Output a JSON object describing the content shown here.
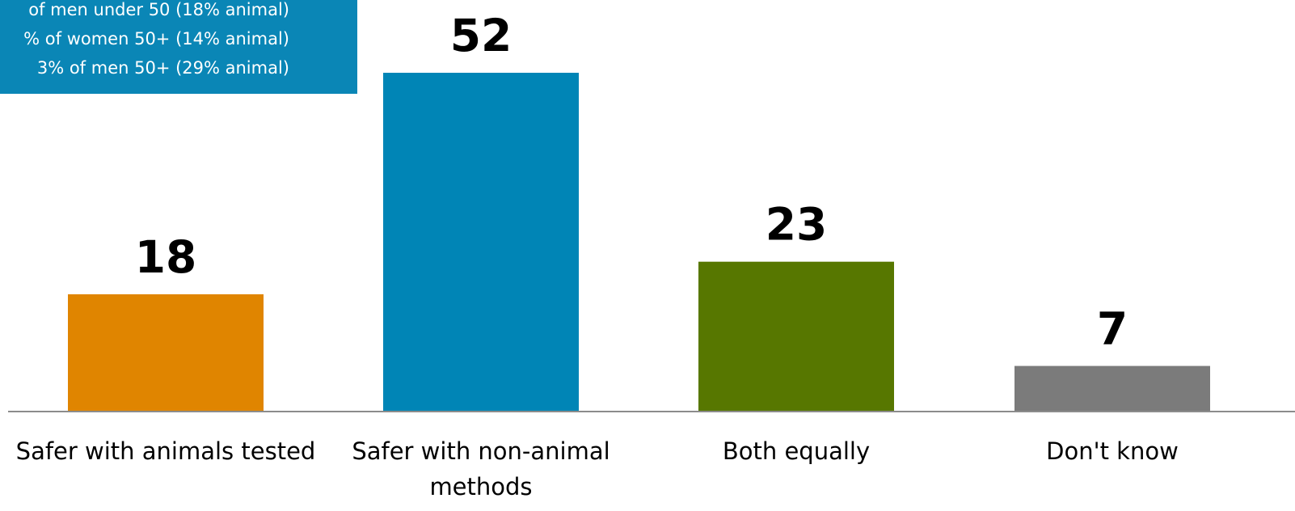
{
  "note": {
    "lines": [
      "of men under 50 (18% animal)",
      "% of women 50+ (14% animal)",
      "3% of men 50+ (29% animal)"
    ],
    "background": "#0a86b6",
    "text_color": "#ffffff"
  },
  "chart_data": {
    "type": "bar",
    "categories": [
      [
        "Safer with animals tested"
      ],
      [
        "Safer with non-animal",
        "methods"
      ],
      [
        "Both equally"
      ],
      [
        "Don't know"
      ]
    ],
    "values": [
      18,
      52,
      23,
      7
    ],
    "data_labels": [
      "18",
      "52",
      "23",
      "7"
    ],
    "colors": [
      "#e08500",
      "#0085b6",
      "#577700",
      "#7b7b7b"
    ],
    "grid": false,
    "legend": "none",
    "ylim": [
      0,
      52
    ]
  }
}
